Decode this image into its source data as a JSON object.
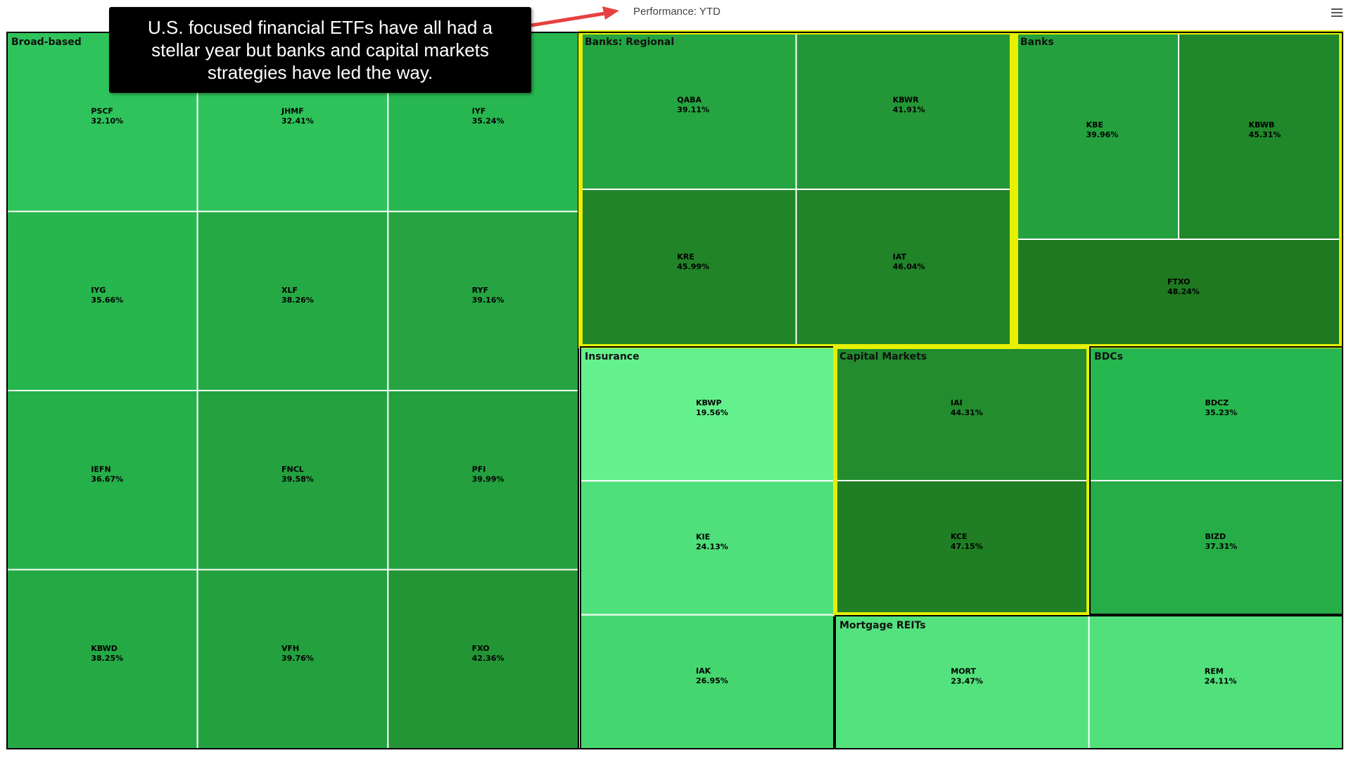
{
  "header": {
    "performance_label": "Performance: YTD"
  },
  "annotation": {
    "text": "U.S. focused financial ETFs have all had a stellar year but banks and capital markets strategies have led the way."
  },
  "colors": {
    "highlight_border": "#e6f000",
    "arrow": "#e84040",
    "light_green": "#66f28f",
    "mid_green": "#26b64d",
    "dark_green": "#1f7d20"
  },
  "chart_data": {
    "type": "treemap",
    "metric": "Performance: YTD",
    "unit": "%",
    "groups": [
      {
        "name": "Broad-based",
        "highlighted": false,
        "items": [
          {
            "ticker": "PSCF",
            "value": 32.1,
            "label": "32.10%"
          },
          {
            "ticker": "JHMF",
            "value": 32.41,
            "label": "32.41%"
          },
          {
            "ticker": "IYF",
            "value": 35.24,
            "label": "35.24%"
          },
          {
            "ticker": "IYG",
            "value": 35.66,
            "label": "35.66%"
          },
          {
            "ticker": "XLF",
            "value": 38.26,
            "label": "38.26%"
          },
          {
            "ticker": "RYF",
            "value": 39.16,
            "label": "39.16%"
          },
          {
            "ticker": "IEFN",
            "value": 36.67,
            "label": "36.67%"
          },
          {
            "ticker": "FNCL",
            "value": 39.58,
            "label": "39.58%"
          },
          {
            "ticker": "PFI",
            "value": 39.99,
            "label": "39.99%"
          },
          {
            "ticker": "KBWD",
            "value": 38.25,
            "label": "38.25%"
          },
          {
            "ticker": "VFH",
            "value": 39.76,
            "label": "39.76%"
          },
          {
            "ticker": "FXO",
            "value": 42.36,
            "label": "42.36%"
          }
        ]
      },
      {
        "name": "Banks: Regional",
        "highlighted": true,
        "items": [
          {
            "ticker": "QABA",
            "value": 39.11,
            "label": "39.11%"
          },
          {
            "ticker": "KBWR",
            "value": 41.91,
            "label": "41.91%"
          },
          {
            "ticker": "KRE",
            "value": 45.99,
            "label": "45.99%"
          },
          {
            "ticker": "IAT",
            "value": 46.04,
            "label": "46.04%"
          }
        ]
      },
      {
        "name": "Banks",
        "highlighted": true,
        "items": [
          {
            "ticker": "KBE",
            "value": 39.96,
            "label": "39.96%"
          },
          {
            "ticker": "KBWB",
            "value": 45.31,
            "label": "45.31%"
          },
          {
            "ticker": "FTXO",
            "value": 48.24,
            "label": "48.24%"
          }
        ]
      },
      {
        "name": "Insurance",
        "highlighted": false,
        "items": [
          {
            "ticker": "KBWP",
            "value": 19.56,
            "label": "19.56%"
          },
          {
            "ticker": "KIE",
            "value": 24.13,
            "label": "24.13%"
          },
          {
            "ticker": "IAK",
            "value": 26.95,
            "label": "26.95%"
          }
        ]
      },
      {
        "name": "Capital Markets",
        "highlighted": true,
        "items": [
          {
            "ticker": "IAI",
            "value": 44.31,
            "label": "44.31%"
          },
          {
            "ticker": "KCE",
            "value": 47.15,
            "label": "47.15%"
          }
        ]
      },
      {
        "name": "BDCs",
        "highlighted": false,
        "items": [
          {
            "ticker": "BDCZ",
            "value": 35.23,
            "label": "35.23%"
          },
          {
            "ticker": "BIZD",
            "value": 37.31,
            "label": "37.31%"
          }
        ]
      },
      {
        "name": "Mortgage REITs",
        "highlighted": false,
        "items": [
          {
            "ticker": "MORT",
            "value": 23.47,
            "label": "23.47%"
          },
          {
            "ticker": "REM",
            "value": 24.11,
            "label": "24.11%"
          }
        ]
      }
    ]
  }
}
